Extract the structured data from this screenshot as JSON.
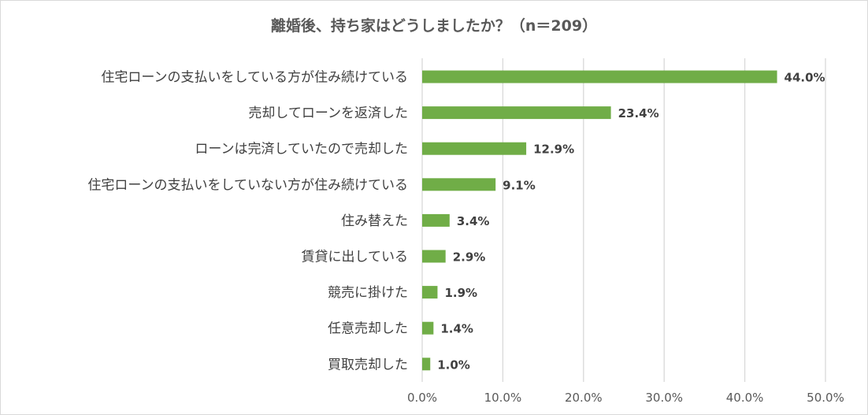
{
  "chart_data": {
    "type": "bar",
    "orientation": "horizontal",
    "title": "離婚後、持ち家はどうしましたか？（n＝209）",
    "categories": [
      "住宅ローンの支払いをしている方が住み続けている",
      "売却してローンを返済した",
      "ローンは完済していたので売却した",
      "住宅ローンの支払いをしていない方が住み続けている",
      "住み替えた",
      "賃貸に出している",
      "競売に掛けた",
      "任意売却した",
      "買取売却した"
    ],
    "values": [
      44.0,
      23.4,
      12.9,
      9.1,
      3.4,
      2.9,
      1.9,
      1.4,
      1.0
    ],
    "value_labels": [
      "44.0%",
      "23.4%",
      "12.9%",
      "9.1%",
      "3.4%",
      "2.9%",
      "1.9%",
      "1.4%",
      "1.0%"
    ],
    "xlim": [
      0,
      50
    ],
    "x_ticks": [
      "0.0%",
      "10.0%",
      "20.0%",
      "30.0%",
      "40.0%",
      "50.0%"
    ],
    "x_tick_values": [
      0,
      10,
      20,
      30,
      40,
      50
    ],
    "grid": "vertical",
    "legend": "none",
    "bar_color": "#70ad47",
    "grid_color": "#d9d9d9"
  }
}
